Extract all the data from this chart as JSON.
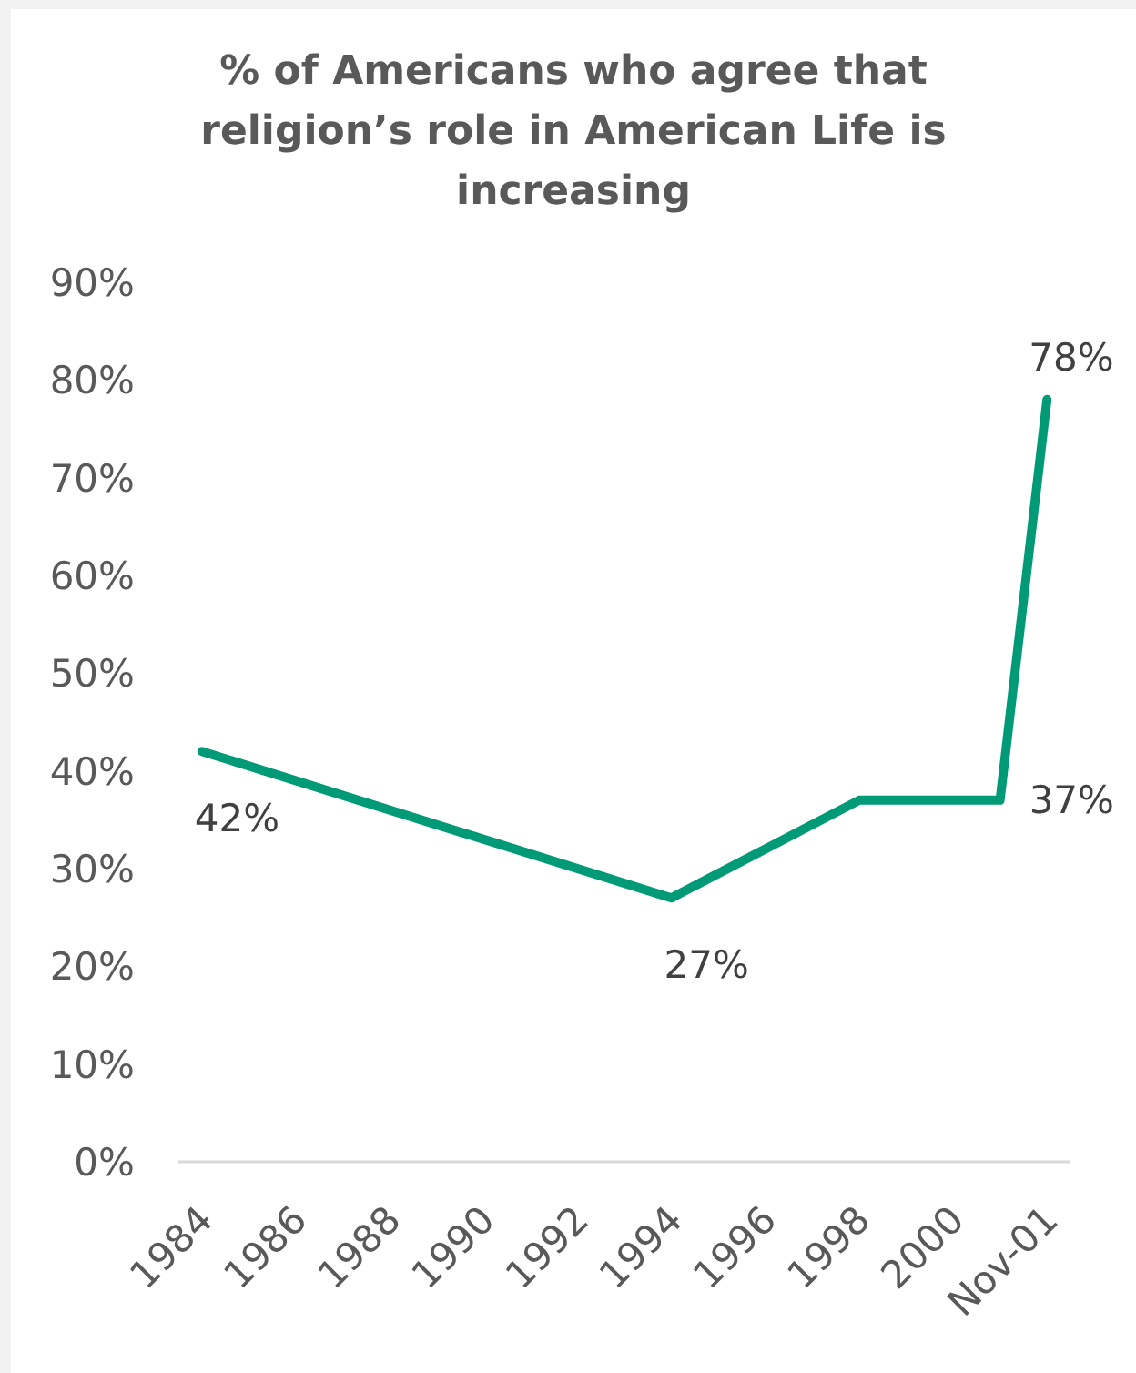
{
  "chart_data": {
    "type": "line",
    "title": "% of Americans who agree that religion’s role in American Life is increasing",
    "categories": [
      "1984",
      null,
      "1986",
      null,
      "1988",
      null,
      "1990",
      null,
      "1992",
      null,
      "1994",
      null,
      "1996",
      null,
      "1998",
      null,
      "2000",
      null,
      "Nov-01"
    ],
    "values": [
      42,
      null,
      null,
      null,
      null,
      null,
      null,
      null,
      null,
      null,
      27,
      null,
      null,
      null,
      37,
      null,
      null,
      37,
      78
    ],
    "color": "#009a76",
    "value_labels": [
      "42%",
      null,
      null,
      null,
      null,
      null,
      null,
      null,
      null,
      null,
      "27%",
      null,
      null,
      null,
      null,
      null,
      null,
      "37%",
      "78%"
    ],
    "ylim": [
      0,
      90
    ],
    "yticks": [
      {
        "value": 0,
        "label": "0%"
      },
      {
        "value": 10,
        "label": "10%"
      },
      {
        "value": 20,
        "label": "20%"
      },
      {
        "value": 30,
        "label": "30%"
      },
      {
        "value": 40,
        "label": "40%"
      },
      {
        "value": 50,
        "label": "50%"
      },
      {
        "value": 60,
        "label": "60%"
      },
      {
        "value": 70,
        "label": "70%"
      },
      {
        "value": 80,
        "label": "80%"
      },
      {
        "value": 90,
        "label": "90%"
      }
    ],
    "marker": "none",
    "line_style": "solid"
  }
}
